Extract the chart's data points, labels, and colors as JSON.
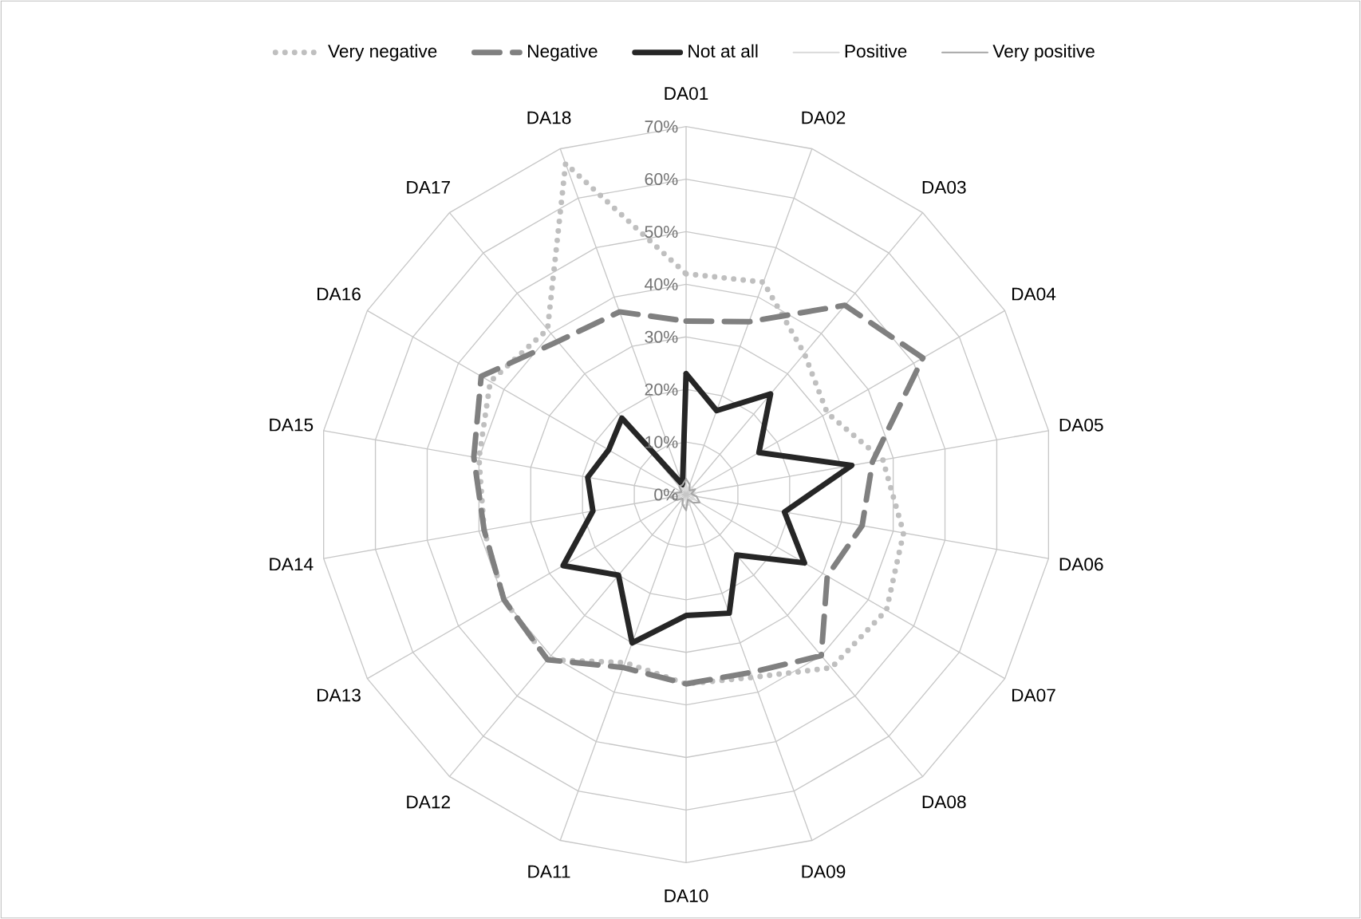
{
  "chart_data": {
    "type": "radar",
    "categories": [
      "DA01",
      "DA02",
      "DA03",
      "DA04",
      "DA05",
      "DA06",
      "DA07",
      "DA08",
      "DA09",
      "DA10",
      "DA11",
      "DA12",
      "DA13",
      "DA14",
      "DA15",
      "DA16",
      "DA17",
      "DA18"
    ],
    "ylim": [
      0,
      70
    ],
    "yticks": [
      {
        "value": 0,
        "label": "0%"
      },
      {
        "value": 10,
        "label": "10%"
      },
      {
        "value": 20,
        "label": "20%"
      },
      {
        "value": 30,
        "label": "30%"
      },
      {
        "value": 40,
        "label": "40%"
      },
      {
        "value": 50,
        "label": "50%"
      },
      {
        "value": 60,
        "label": "60%"
      },
      {
        "value": 70,
        "label": "70%"
      }
    ],
    "grid": true,
    "legend": "top",
    "marker": "none",
    "series": [
      {
        "name": "Very negative",
        "color": "#bfbfbf",
        "line_style": "dotted",
        "values": [
          42,
          43,
          35,
          31,
          38,
          42,
          44,
          43,
          37,
          36,
          34,
          41,
          40,
          39,
          40,
          43,
          41,
          67
        ]
      },
      {
        "name": "Negative",
        "color": "#808080",
        "line_style": "dashed",
        "values": [
          33,
          35,
          47,
          52,
          36,
          34,
          31,
          40,
          36,
          36,
          35,
          41,
          40,
          39,
          41,
          45,
          38,
          37
        ]
      },
      {
        "name": "Not at all",
        "color": "#262626",
        "line_style": "solid",
        "values": [
          23,
          17,
          25,
          16,
          32,
          19,
          26,
          15,
          24,
          23,
          30,
          20,
          27,
          18,
          19,
          17,
          19,
          2
        ]
      },
      {
        "name": "Positive",
        "color": "#d9d9d9",
        "line_style": "solid",
        "values": [
          2,
          1,
          2,
          1,
          2,
          1,
          2,
          1,
          2,
          2,
          2,
          1,
          2,
          1,
          2,
          1,
          2,
          1
        ]
      },
      {
        "name": "Very positive",
        "color": "#a6a6a6",
        "line_style": "solid",
        "values": [
          3,
          2,
          1,
          2,
          1,
          2,
          3,
          2,
          1,
          3,
          2,
          1,
          2,
          3,
          2,
          1,
          2,
          2
        ]
      }
    ]
  }
}
